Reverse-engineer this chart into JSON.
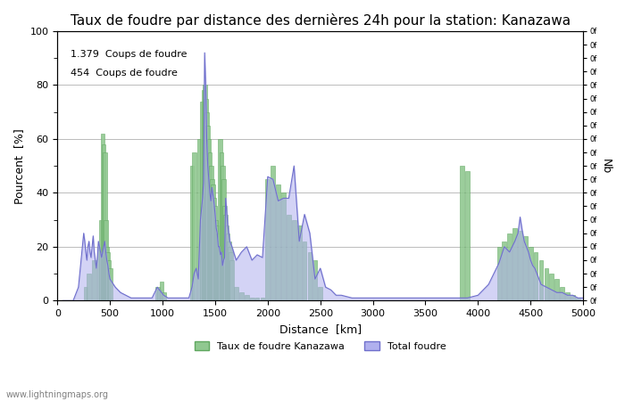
{
  "title": "Taux de foudre par distance des dernières 24h pour la station: Kanazawa",
  "xlabel": "Distance  [km]",
  "ylabel_left": "Pourcent  [%]",
  "ylabel_right": "Nb",
  "annotation_line1": "1.379  Coups de foudre",
  "annotation_line2": "454  Coups de foudre",
  "legend_green": "Taux de foudre Kanazawa",
  "legend_blue": "Total foudre",
  "watermark": "www.lightningmaps.org",
  "xlim": [
    0,
    5000
  ],
  "ylim_left": [
    0,
    100
  ],
  "ylim_right": [
    0,
    100
  ],
  "green_color": "#90c890",
  "blue_color": "#b0b0ee",
  "green_edge": "#60a860",
  "blue_line": "#7070cc",
  "background_color": "#ffffff",
  "grid_color": "#bbbbbb",
  "title_fontsize": 11,
  "label_fontsize": 9,
  "tick_fontsize": 8,
  "green_x": [
    270,
    300,
    350,
    400,
    420,
    430,
    440,
    450,
    460,
    470,
    480,
    490,
    500,
    950,
    970,
    990,
    1010,
    1280,
    1300,
    1350,
    1380,
    1390,
    1400,
    1410,
    1420,
    1430,
    1440,
    1450,
    1460,
    1470,
    1480,
    1490,
    1500,
    1510,
    1520,
    1530,
    1540,
    1550,
    1560,
    1570,
    1580,
    1590,
    1600,
    1610,
    1620,
    1630,
    1640,
    1650,
    1660,
    1700,
    1750,
    1800,
    1850,
    1900,
    1950,
    2000,
    2050,
    2100,
    2150,
    2200,
    2250,
    2300,
    2350,
    2400,
    2450,
    2500,
    3850,
    3900,
    4200,
    4250,
    4300,
    4350,
    4400,
    4450,
    4500,
    4550,
    4600,
    4650,
    4700,
    4750,
    4800,
    4850,
    4900,
    4950
  ],
  "green_y": [
    5,
    10,
    15,
    20,
    30,
    62,
    58,
    55,
    30,
    20,
    18,
    15,
    12,
    5,
    4,
    7,
    3,
    50,
    55,
    60,
    74,
    78,
    80,
    75,
    70,
    65,
    60,
    55,
    50,
    45,
    43,
    38,
    35,
    30,
    28,
    25,
    20,
    60,
    55,
    50,
    45,
    35,
    32,
    28,
    25,
    22,
    20,
    18,
    15,
    5,
    3,
    2,
    1,
    1,
    1,
    45,
    50,
    43,
    40,
    32,
    30,
    28,
    22,
    18,
    15,
    5,
    50,
    48,
    20,
    22,
    25,
    27,
    26,
    24,
    20,
    18,
    15,
    12,
    10,
    8,
    5,
    3,
    2,
    1
  ],
  "blue_x": [
    50,
    100,
    150,
    200,
    250,
    260,
    270,
    280,
    290,
    300,
    310,
    320,
    330,
    340,
    350,
    360,
    370,
    380,
    390,
    400,
    410,
    420,
    430,
    440,
    450,
    460,
    470,
    480,
    490,
    500,
    550,
    600,
    650,
    700,
    750,
    800,
    850,
    900,
    950,
    970,
    990,
    1010,
    1050,
    1100,
    1150,
    1200,
    1250,
    1280,
    1300,
    1320,
    1340,
    1360,
    1380,
    1390,
    1400,
    1410,
    1420,
    1430,
    1440,
    1450,
    1460,
    1470,
    1480,
    1490,
    1500,
    1510,
    1520,
    1530,
    1540,
    1550,
    1560,
    1570,
    1580,
    1590,
    1600,
    1620,
    1640,
    1660,
    1700,
    1750,
    1800,
    1850,
    1900,
    1950,
    2000,
    2050,
    2100,
    2150,
    2200,
    2250,
    2300,
    2350,
    2400,
    2450,
    2500,
    2550,
    2600,
    2650,
    2700,
    2800,
    2900,
    3000,
    3100,
    3200,
    3300,
    3500,
    3600,
    3700,
    3800,
    3900,
    4000,
    4050,
    4100,
    4150,
    4200,
    4250,
    4300,
    4350,
    4380,
    4400,
    4420,
    4440,
    4460,
    4480,
    4500,
    4520,
    4540,
    4560,
    4580,
    4600,
    4650,
    4700,
    4750,
    4800,
    4850,
    4900,
    4950,
    5000
  ],
  "blue_y": [
    0,
    0,
    0,
    5,
    25,
    22,
    18,
    15,
    20,
    22,
    18,
    16,
    20,
    24,
    18,
    15,
    12,
    16,
    22,
    20,
    18,
    16,
    18,
    20,
    22,
    18,
    15,
    13,
    10,
    8,
    5,
    3,
    2,
    1,
    1,
    1,
    1,
    1,
    5,
    4,
    3,
    2,
    1,
    1,
    1,
    1,
    1,
    5,
    10,
    12,
    8,
    30,
    38,
    44,
    92,
    80,
    60,
    50,
    45,
    40,
    37,
    42,
    39,
    36,
    32,
    27,
    25,
    20,
    20,
    17,
    18,
    13,
    15,
    16,
    38,
    28,
    22,
    20,
    15,
    18,
    20,
    15,
    17,
    16,
    46,
    45,
    37,
    38,
    38,
    50,
    22,
    32,
    25,
    8,
    12,
    5,
    4,
    2,
    2,
    1,
    1,
    1,
    1,
    1,
    1,
    1,
    1,
    1,
    1,
    1,
    2,
    4,
    6,
    10,
    14,
    20,
    18,
    22,
    25,
    31,
    26,
    22,
    20,
    18,
    15,
    13,
    12,
    10,
    8,
    6,
    5,
    4,
    3,
    3,
    2,
    2,
    1,
    1
  ]
}
